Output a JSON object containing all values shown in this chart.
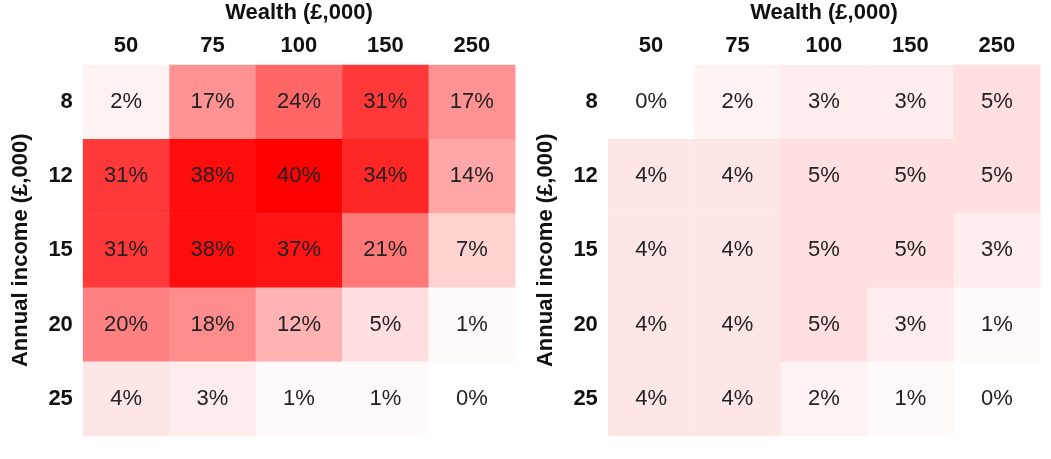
{
  "chart_data": [
    {
      "type": "heatmap",
      "xlabel": "Wealth (£,000)",
      "ylabel": "Annual income (£,000)",
      "categories": [
        "50",
        "75",
        "100",
        "150",
        "250"
      ],
      "y_categories": [
        "8",
        "12",
        "15",
        "20",
        "25"
      ],
      "colors": [
        "#ffffff",
        "#ff0000"
      ],
      "cells": [
        [
          2,
          17,
          24,
          31,
          17
        ],
        [
          31,
          38,
          40,
          34,
          14
        ],
        [
          31,
          38,
          37,
          21,
          7
        ],
        [
          20,
          18,
          12,
          5,
          1
        ],
        [
          4,
          3,
          1,
          1,
          0
        ]
      ],
      "cell_labels": [
        [
          "2%",
          "17%",
          "24%",
          "31%",
          "17%"
        ],
        [
          "31%",
          "38%",
          "40%",
          "34%",
          "14%"
        ],
        [
          "31%",
          "38%",
          "37%",
          "21%",
          "7%"
        ],
        [
          "20%",
          "18%",
          "12%",
          "5%",
          "1%"
        ],
        [
          "4%",
          "3%",
          "1%",
          "1%",
          "0%"
        ]
      ]
    },
    {
      "type": "heatmap",
      "xlabel": "Wealth (£,000)",
      "ylabel": "Annual income (£,000)",
      "categories": [
        "50",
        "75",
        "100",
        "150",
        "250"
      ],
      "y_categories": [
        "8",
        "12",
        "15",
        "20",
        "25"
      ],
      "colors": [
        "#ffffff",
        "#ff0000"
      ],
      "cells": [
        [
          0,
          2,
          3,
          3,
          5
        ],
        [
          4,
          4,
          5,
          5,
          5
        ],
        [
          4,
          4,
          5,
          5,
          3
        ],
        [
          4,
          4,
          5,
          3,
          1
        ],
        [
          4,
          4,
          2,
          1,
          0
        ]
      ],
      "cell_labels": [
        [
          "0%",
          "2%",
          "3%",
          "3%",
          "5%"
        ],
        [
          "4%",
          "4%",
          "5%",
          "5%",
          "5%"
        ],
        [
          "4%",
          "4%",
          "5%",
          "5%",
          "3%"
        ],
        [
          "4%",
          "4%",
          "5%",
          "3%",
          "1%"
        ],
        [
          "4%",
          "4%",
          "2%",
          "1%",
          "0%"
        ]
      ]
    }
  ]
}
